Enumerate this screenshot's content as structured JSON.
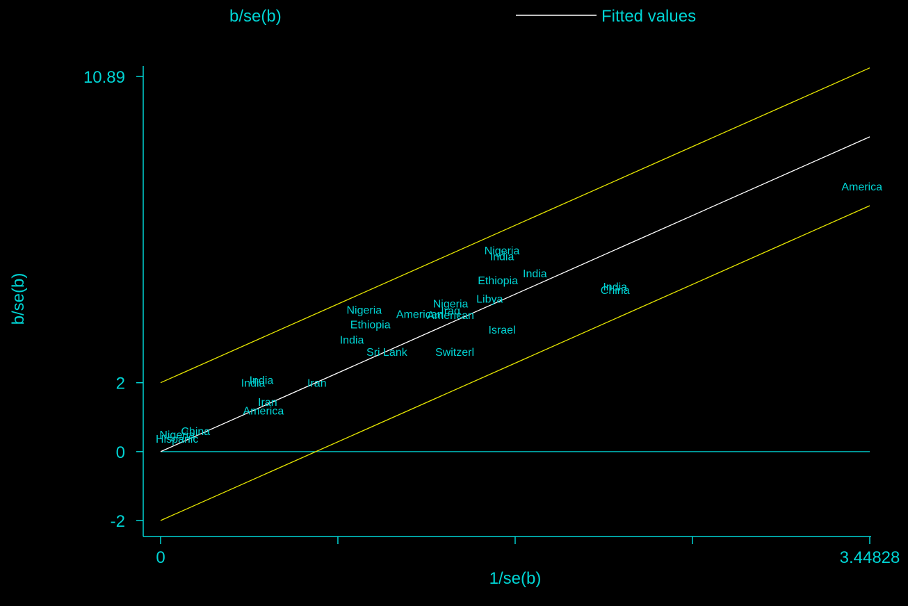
{
  "chart_data": {
    "type": "scatter",
    "title": "b/se(b)",
    "xlabel": "1/se(b)",
    "ylabel": "b/se(b)",
    "legend": {
      "placement": "top-right",
      "entries": [
        {
          "label": "Fitted values",
          "color": "#ffffff"
        }
      ]
    },
    "xlim": [
      0,
      3.44828
    ],
    "ylim": [
      -2,
      10.89
    ],
    "x_tick_labels": [
      {
        "value": 0,
        "label": "0"
      },
      {
        "value": 3.44828,
        "label": "3.44828"
      }
    ],
    "x_minor_ticks": [
      0,
      0.862,
      1.724,
      2.586,
      3.44828
    ],
    "y_tick_labels": [
      {
        "value": 10.89,
        "label": "10.89"
      },
      {
        "value": 2,
        "label": "2"
      },
      {
        "value": 0,
        "label": "0"
      },
      {
        "value": -2,
        "label": "-2"
      }
    ],
    "grid": false,
    "colors": {
      "background": "#000000",
      "text": "#00d4d4",
      "axis": "#00d4d4",
      "fitted_line": "#ffffff",
      "confidence_lines": "#e6e600",
      "zero_line": "#00d4d4"
    },
    "fitted_line": {
      "slope": 2.65,
      "intercept": 0
    },
    "confidence_lines": [
      {
        "slope": 2.65,
        "intercept": 2
      },
      {
        "slope": 2.65,
        "intercept": -2
      }
    ],
    "points": [
      {
        "label": "America",
        "x": 3.41,
        "y": 7.7
      },
      {
        "label": "Nigeria",
        "x": 1.66,
        "y": 5.85
      },
      {
        "label": "India",
        "x": 1.66,
        "y": 5.68
      },
      {
        "label": "India",
        "x": 1.82,
        "y": 5.18
      },
      {
        "label": "Ethiopia",
        "x": 1.64,
        "y": 4.98
      },
      {
        "label": "India",
        "x": 2.21,
        "y": 4.8
      },
      {
        "label": "China",
        "x": 2.21,
        "y": 4.7
      },
      {
        "label": "Nigeria",
        "x": 1.41,
        "y": 4.3
      },
      {
        "label": "Libya",
        "x": 1.6,
        "y": 4.45
      },
      {
        "label": "Iraq",
        "x": 1.41,
        "y": 4.1
      },
      {
        "label": "American",
        "x": 1.41,
        "y": 3.97
      },
      {
        "label": "American",
        "x": 1.26,
        "y": 4.0
      },
      {
        "label": "Nigeria",
        "x": 0.99,
        "y": 4.12
      },
      {
        "label": "Ethiopia",
        "x": 1.02,
        "y": 3.7
      },
      {
        "label": "Israel",
        "x": 1.66,
        "y": 3.55
      },
      {
        "label": "India",
        "x": 0.93,
        "y": 3.25
      },
      {
        "label": "Sri Lank",
        "x": 1.1,
        "y": 2.9
      },
      {
        "label": "Switzerl",
        "x": 1.43,
        "y": 2.9
      },
      {
        "label": "India",
        "x": 0.49,
        "y": 2.08
      },
      {
        "label": "India",
        "x": 0.45,
        "y": 2.0
      },
      {
        "label": "Iran",
        "x": 0.76,
        "y": 2.0
      },
      {
        "label": "Iran",
        "x": 0.52,
        "y": 1.45
      },
      {
        "label": "America",
        "x": 0.5,
        "y": 1.2
      },
      {
        "label": "China",
        "x": 0.17,
        "y": 0.6
      },
      {
        "label": "Nigeria",
        "x": 0.08,
        "y": 0.5
      },
      {
        "label": "Hispanic",
        "x": 0.08,
        "y": 0.38
      }
    ]
  }
}
